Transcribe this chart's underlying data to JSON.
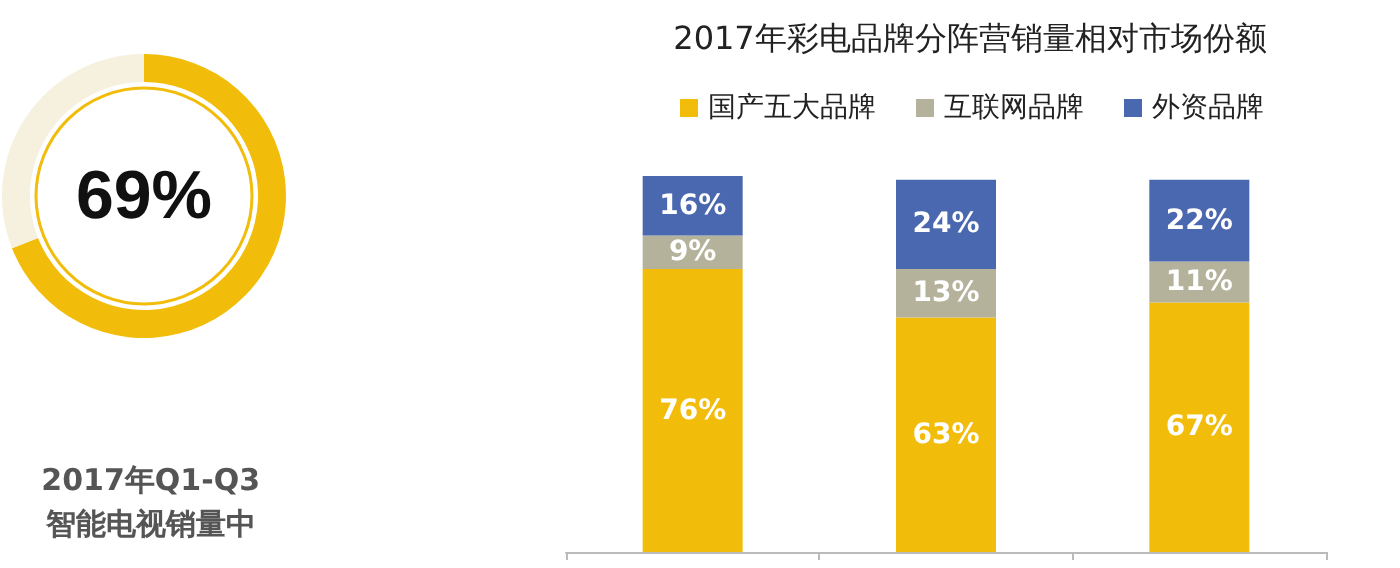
{
  "chart_data": [
    {
      "type": "donut",
      "title": "2017年Q1-Q3\n智能电视销量中",
      "categories": [
        null,
        null
      ],
      "values": [
        69,
        31
      ],
      "colors": [
        "#f2bd0a",
        "#f6f1de"
      ],
      "annotations": [
        "69%"
      ]
    },
    {
      "type": "bar",
      "title": "2017年彩电品牌分阵营销量相对市场份额",
      "categories": [
        null,
        null,
        null
      ],
      "stacked": true,
      "legend": "top",
      "grid": false,
      "series": [
        {
          "name": "国产五大品牌",
          "color": "#f2bd0a",
          "values": [
            76,
            63,
            67
          ],
          "value_labels": [
            "76%",
            "63%",
            "67%"
          ]
        },
        {
          "name": "互联网品牌",
          "color": "#b4b29a",
          "values": [
            9,
            13,
            11
          ],
          "value_labels": [
            "9%",
            "13%",
            "11%"
          ]
        },
        {
          "name": "外资品牌",
          "color": "#4a68b0",
          "values": [
            16,
            24,
            22
          ],
          "value_labels": [
            "16%",
            "24%",
            "22%"
          ]
        }
      ]
    }
  ]
}
